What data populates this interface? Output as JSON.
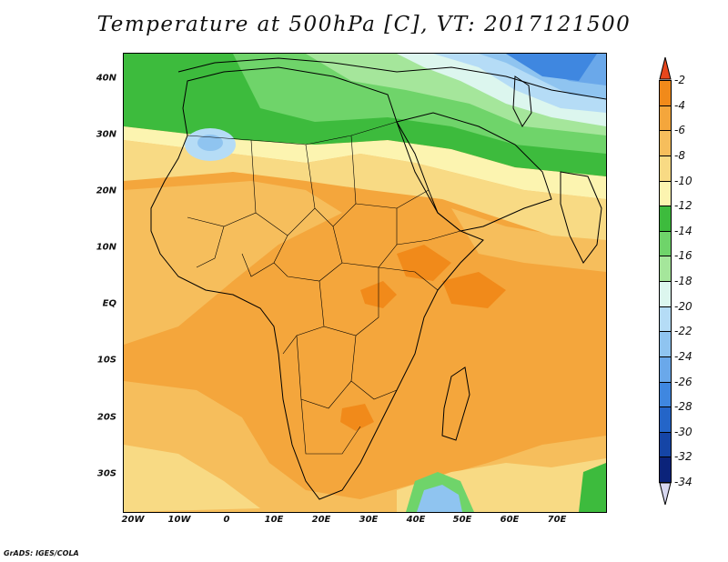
{
  "title": "Temperature at 500hPa [C], VT: 2017121500",
  "credit": "GrADS: IGES/COLA",
  "map": {
    "projection": "lat-lon",
    "lon_range": [
      -25,
      80
    ],
    "lat_range": [
      -37,
      45
    ],
    "lat_ticks": [
      "40N",
      "30N",
      "20N",
      "10N",
      "EQ",
      "10S",
      "20S",
      "30S"
    ],
    "lon_ticks": [
      "20W",
      "10W",
      "0",
      "10E",
      "20E",
      "30E",
      "40E",
      "50E",
      "60E",
      "70E"
    ]
  },
  "colorbar": {
    "labels": [
      "-2",
      "-4",
      "-6",
      "-8",
      "-10",
      "-12",
      "-14",
      "-16",
      "-18",
      "-20",
      "-22",
      "-24",
      "-26",
      "-28",
      "-30",
      "-32",
      "-34"
    ],
    "colors": [
      "#e8461c",
      "#f18a1a",
      "#f4a63c",
      "#f6be5c",
      "#f8da84",
      "#fcf4b0",
      "#3dbb3d",
      "#6fd46a",
      "#a5e69b",
      "#dcf6ee",
      "#b5dcf6",
      "#8fc4f0",
      "#6aa8ea",
      "#3f87e0",
      "#2465c8",
      "#1545a6",
      "#0b237a",
      "#d8d8f0"
    ]
  },
  "legend": {
    "temperature_levels": [
      -2,
      -4,
      -6,
      -8,
      -10,
      -12,
      -14,
      -16,
      -18,
      -20,
      -22,
      -24,
      -26,
      -28,
      -30,
      -32,
      -34
    ],
    "units": "C"
  }
}
